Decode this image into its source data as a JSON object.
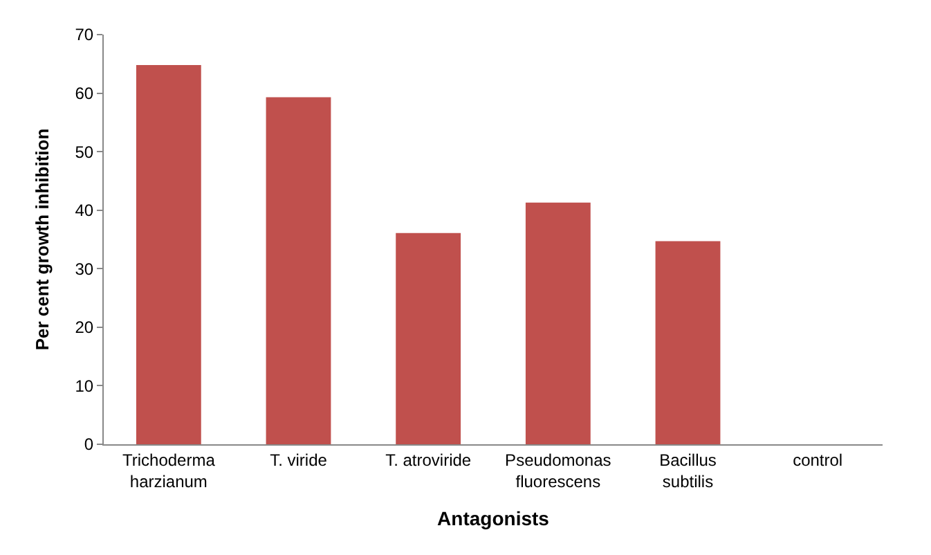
{
  "chart_data": {
    "type": "bar",
    "xlabel": "Antagonists",
    "ylabel": "Per cent growth inhibition",
    "categories": [
      "Trichoderma harzianum",
      "T. viride",
      "T. atroviride",
      "Pseudomonas fluorescens",
      "Bacillus subtilis",
      "control"
    ],
    "values": [
      64.8,
      59.3,
      36.1,
      41.3,
      34.7,
      0
    ],
    "color": "#c0504d",
    "ylim": [
      0,
      70
    ],
    "yticks": [
      0,
      10,
      20,
      30,
      40,
      50,
      60,
      70
    ]
  }
}
